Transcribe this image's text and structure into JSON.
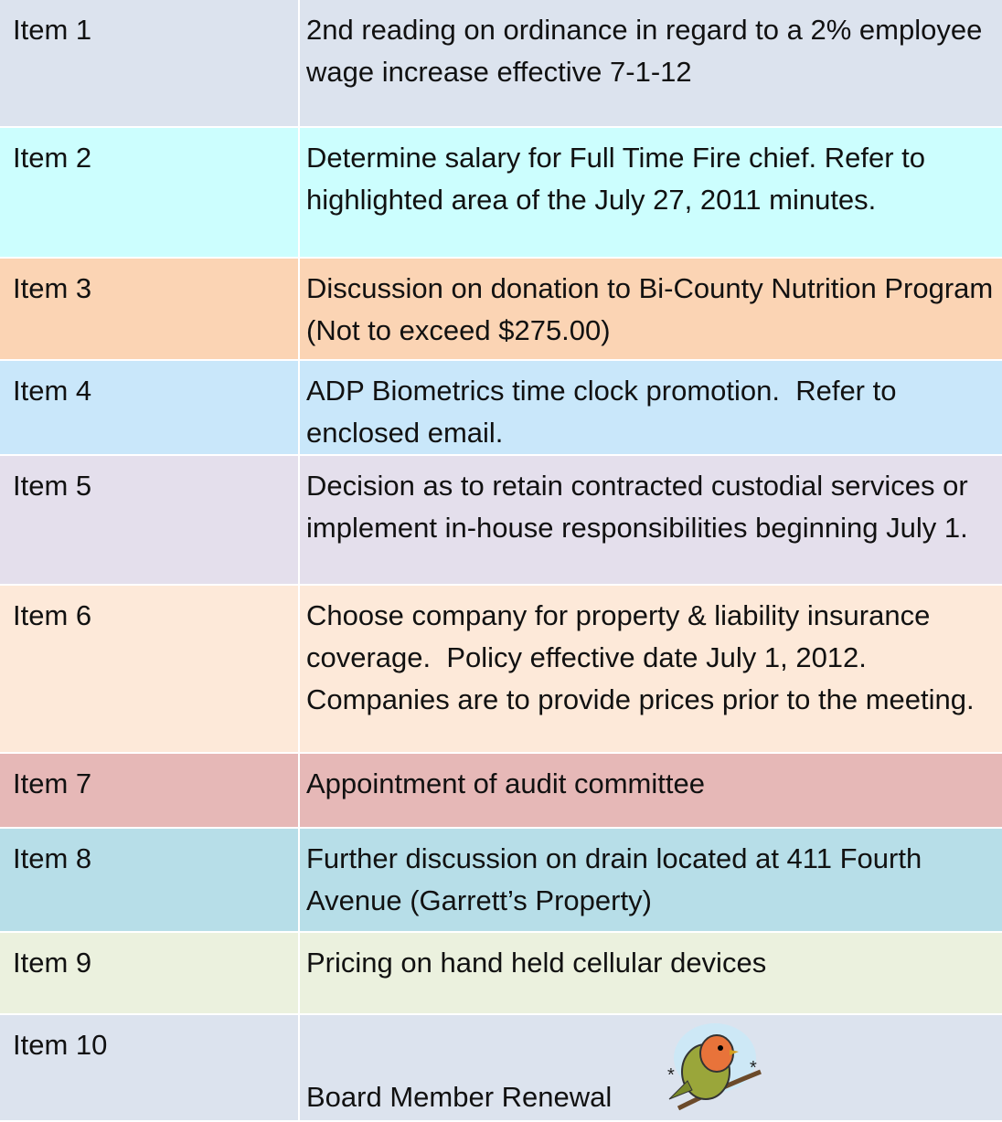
{
  "table": {
    "rows": [
      [
        "Item 1",
        "2nd reading on ordinance in regard to a 2% employee wage increase effective 7-1-12"
      ],
      [
        "Item 2",
        "Determine salary for Full Time Fire chief. Refer to highlighted area of the July 27, 2011 minutes."
      ],
      [
        "Item 3",
        "Discussion on donation to Bi-County Nutrition Program (Not to exceed $275.00)"
      ],
      [
        "Item 4",
        "ADP Biometrics time clock promotion.  Refer to enclosed email."
      ],
      [
        "Item 5",
        "Decision as to retain contracted custodial services or implement in-house responsibilities beginning July 1."
      ],
      [
        "Item 6",
        "Choose company for property & liability insurance coverage.  Policy effective date July 1, 2012.  Companies are to provide prices prior to the meeting."
      ],
      [
        "Item 7",
        "Appointment of audit committee"
      ],
      [
        "Item 8",
        "Further discussion on drain located at 411 Fourth Avenue (Garrett’s Property)"
      ],
      [
        "Item 9",
        "Pricing on hand held cellular devices"
      ],
      [
        "Item 10",
        "Board Member Renewal"
      ]
    ]
  }
}
